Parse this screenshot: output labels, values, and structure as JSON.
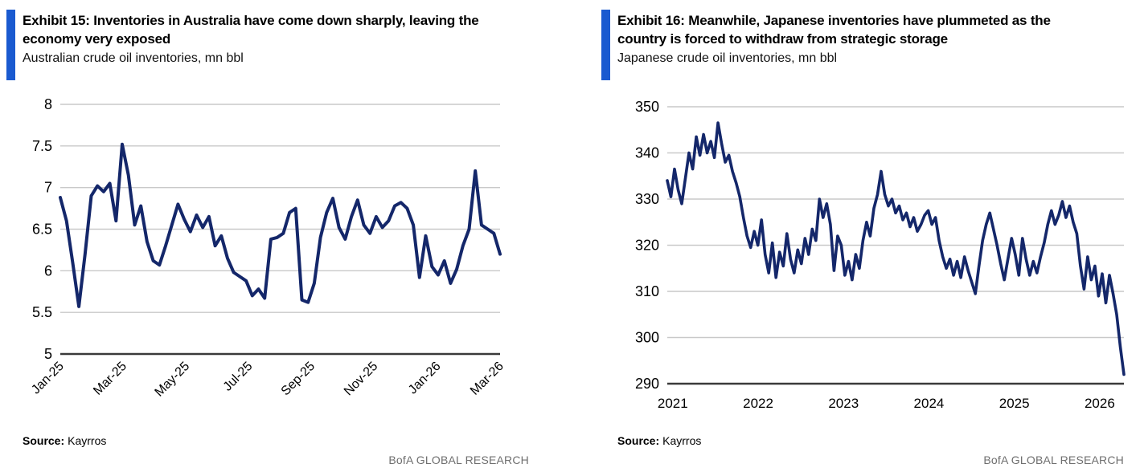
{
  "page": {
    "background": "#ffffff",
    "accent_bar_color": "#1a5ad0",
    "line_color": "#14276A",
    "grid_color": "#c9c9c9",
    "axis_color": "#3a3a3a",
    "watermark_color": "#6f6f6f"
  },
  "panels": [
    {
      "exhibit_title": "Exhibit 15: Inventories in Australia have come down sharply, leaving the economy very exposed",
      "subtitle": "Australian crude oil inventories, mn bbl",
      "source_label": "Source:",
      "source_value": "Kayrros",
      "watermark": "BofA GLOBAL RESEARCH",
      "chart_data": {
        "type": "line",
        "title": "Australian crude oil inventories, mn bbl",
        "xlabel": "",
        "ylabel": "mn bbl",
        "ylim": [
          5,
          8
        ],
        "y_ticks": [
          5,
          5.5,
          6,
          6.5,
          7,
          7.5,
          8
        ],
        "grid": true,
        "legend_position": "none",
        "line_color": "#14276A",
        "grid_color": "#c9c9c9",
        "axis_color": "#3a3a3a",
        "x_tick_labels": [
          "Jan-25",
          "Mar-25",
          "May-25",
          "Jul-25",
          "Sep-25",
          "Nov-25",
          "Jan-26",
          "Mar-26"
        ],
        "x_tick_pos": [
          0,
          0.143,
          0.286,
          0.429,
          0.571,
          0.714,
          0.857,
          1.0
        ],
        "x_label_rotation": -45,
        "series": [
          {
            "name": "Australian crude oil inventories (mn bbl, weekly)",
            "values": [
              6.88,
              6.6,
              6.1,
              5.57,
              6.2,
              6.9,
              7.02,
              6.95,
              7.05,
              6.6,
              7.52,
              7.15,
              6.55,
              6.78,
              6.35,
              6.12,
              6.07,
              6.3,
              6.55,
              6.8,
              6.62,
              6.47,
              6.67,
              6.52,
              6.65,
              6.3,
              6.42,
              6.15,
              5.98,
              5.93,
              5.88,
              5.7,
              5.78,
              5.67,
              6.38,
              6.4,
              6.45,
              6.7,
              6.75,
              5.65,
              5.62,
              5.85,
              6.4,
              6.7,
              6.87,
              6.52,
              6.38,
              6.65,
              6.85,
              6.55,
              6.45,
              6.65,
              6.52,
              6.6,
              6.78,
              6.82,
              6.75,
              6.55,
              5.92,
              6.42,
              6.05,
              5.95,
              6.12,
              5.85,
              6.02,
              6.3,
              6.5,
              7.2,
              6.55,
              6.5,
              6.45,
              6.2
            ]
          }
        ]
      }
    },
    {
      "exhibit_title": "Exhibit 16: Meanwhile, Japanese inventories have plummeted as the country is forced to withdraw from strategic storage",
      "subtitle": "Japanese crude oil inventories, mn bbl",
      "source_label": "Source:",
      "source_value": "Kayrros",
      "watermark": "BofA GLOBAL RESEARCH",
      "chart_data": {
        "type": "line",
        "title": "Japanese crude oil inventories, mn bbl",
        "xlabel": "",
        "ylabel": "mn bbl",
        "ylim": [
          290,
          350
        ],
        "y_ticks": [
          290,
          300,
          310,
          320,
          330,
          340,
          350
        ],
        "grid": true,
        "legend_position": "none",
        "line_color": "#14276A",
        "grid_color": "#c9c9c9",
        "axis_color": "#3a3a3a",
        "x_tick_labels": [
          "2021",
          "2022",
          "2023",
          "2024",
          "2025",
          "2026"
        ],
        "x_tick_pos": [
          0.012,
          0.199,
          0.386,
          0.573,
          0.76,
          0.947
        ],
        "x_label_rotation": 0,
        "series": [
          {
            "name": "Japanese crude oil inventories (mn bbl)",
            "values": [
              334,
              330.5,
              336.5,
              332,
              329,
              334.5,
              340,
              336.5,
              343.5,
              339.5,
              344,
              340,
              342.5,
              339,
              346.5,
              342,
              338,
              339.5,
              336,
              333.5,
              330.5,
              326,
              322,
              319.5,
              323,
              320,
              325.5,
              318,
              314,
              320.5,
              313,
              318.5,
              315.5,
              322.5,
              317,
              314,
              319,
              316,
              321.5,
              318,
              323.5,
              321,
              330,
              326,
              329,
              324.5,
              314.5,
              322,
              320,
              313.5,
              316.5,
              312.5,
              318,
              315,
              321,
              325,
              322,
              328,
              331,
              336,
              331,
              328.5,
              330,
              327,
              328.5,
              325.5,
              327,
              324,
              326,
              323,
              324.5,
              326.5,
              327.5,
              324.5,
              326,
              321,
              317.5,
              315,
              317,
              313.5,
              316.5,
              313,
              317.5,
              314.5,
              312,
              309.5,
              315.5,
              321,
              324.5,
              327,
              323.5,
              320,
              316,
              312.5,
              317,
              321.5,
              318,
              313.5,
              321.5,
              317,
              313.5,
              316.5,
              314,
              317.5,
              320.5,
              324.5,
              327.5,
              324.5,
              326.5,
              329.5,
              326,
              328.5,
              325,
              322.5,
              315.5,
              310.5,
              317.5,
              312.5,
              315.5,
              309,
              313.8,
              307.5,
              313.5,
              309.5,
              305,
              298,
              292
            ]
          }
        ]
      }
    }
  ]
}
